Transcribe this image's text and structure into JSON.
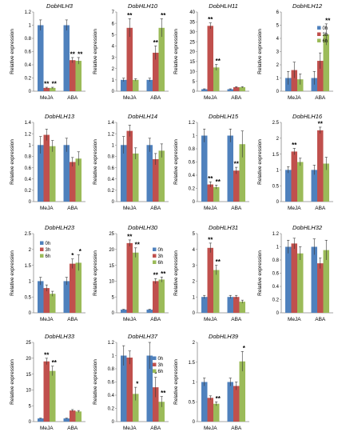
{
  "colors": {
    "0h": "#4F81BD",
    "3h": "#C0504D",
    "6h": "#9BBB59",
    "axis": "#888888",
    "text": "#000000"
  },
  "chart_data": [
    {
      "type": "bar",
      "title": "DobHLH3",
      "ylabel": "Relative expression",
      "ylim": [
        0,
        1.2
      ],
      "yticks": [
        "0",
        "0.2",
        "0.4",
        "0.6",
        "0.8",
        "1",
        "1.2"
      ],
      "categories": [
        "MeJA",
        "ABA"
      ],
      "series": [
        {
          "name": "0h",
          "values": [
            1,
            1
          ],
          "err": [
            0.08,
            0.08
          ]
        },
        {
          "name": "3h",
          "values": [
            0.05,
            0.47
          ],
          "err": [
            0.01,
            0.04
          ]
        },
        {
          "name": "6h",
          "values": [
            0.05,
            0.46
          ],
          "err": [
            0.01,
            0.05
          ]
        }
      ],
      "annotations": [
        [
          "",
          "**",
          "**"
        ],
        [
          "",
          "**",
          "**"
        ]
      ]
    },
    {
      "type": "bar",
      "title": "DobHLH10",
      "ylabel": "Relative expression",
      "ylim": [
        0,
        7
      ],
      "yticks": [
        "0",
        "1",
        "2",
        "3",
        "4",
        "5",
        "6",
        "7"
      ],
      "categories": [
        "MeJA",
        "ABA"
      ],
      "series": [
        {
          "name": "0h",
          "values": [
            1,
            1
          ],
          "err": [
            0.15,
            0.15
          ]
        },
        {
          "name": "3h",
          "values": [
            5.6,
            3.4
          ],
          "err": [
            0.8,
            0.6
          ]
        },
        {
          "name": "6h",
          "values": [
            1,
            5.6
          ],
          "err": [
            0.1,
            0.8
          ]
        }
      ],
      "annotations": [
        [
          "",
          "**",
          ""
        ],
        [
          "",
          "**",
          "**"
        ]
      ]
    },
    {
      "type": "bar",
      "title": "DobHLH11",
      "ylabel": "Relative expression",
      "ylim": [
        0,
        40
      ],
      "yticks": [
        "0",
        "5",
        "10",
        "15",
        "20",
        "25",
        "30",
        "35",
        "40"
      ],
      "categories": [
        "MeJA",
        "ABA"
      ],
      "series": [
        {
          "name": "0h",
          "values": [
            1,
            1
          ],
          "err": [
            0.2,
            0.2
          ]
        },
        {
          "name": "3h",
          "values": [
            33,
            2
          ],
          "err": [
            1.5,
            0.3
          ]
        },
        {
          "name": "6h",
          "values": [
            12,
            2
          ],
          "err": [
            1.5,
            0.3
          ]
        }
      ],
      "annotations": [
        [
          "",
          "**",
          "**"
        ],
        [
          "",
          "",
          ""
        ]
      ]
    },
    {
      "type": "bar",
      "title": "DobHLH12",
      "ylabel": "Relative expression",
      "ylim": [
        0,
        6
      ],
      "yticks": [
        "0",
        "1",
        "2",
        "3",
        "4",
        "5",
        "6"
      ],
      "categories": [
        "MeJA",
        "ABA"
      ],
      "series": [
        {
          "name": "0h",
          "values": [
            1,
            1
          ],
          "err": [
            0.5,
            0.5
          ]
        },
        {
          "name": "3h",
          "values": [
            1.6,
            2.3
          ],
          "err": [
            0.6,
            0.6
          ]
        },
        {
          "name": "6h",
          "values": [
            0.9,
            4.3
          ],
          "err": [
            0.4,
            0.8
          ]
        }
      ],
      "annotations": [
        [
          "",
          "",
          ""
        ],
        [
          "",
          "",
          "**"
        ]
      ],
      "legend": [
        "0h",
        "3h",
        "6h"
      ],
      "legend_position": "right"
    },
    {
      "type": "bar",
      "title": "DobHLH13",
      "ylabel": "Relative expression",
      "ylim": [
        0,
        1.4
      ],
      "yticks": [
        "0",
        "0.2",
        "0.4",
        "0.6",
        "0.8",
        "1",
        "1.2",
        "1.4"
      ],
      "categories": [
        "MeJA",
        "ABA"
      ],
      "series": [
        {
          "name": "0h",
          "values": [
            1,
            1
          ],
          "err": [
            0.15,
            0.12
          ]
        },
        {
          "name": "3h",
          "values": [
            1.18,
            0.7
          ],
          "err": [
            0.1,
            0.08
          ]
        },
        {
          "name": "6h",
          "values": [
            0.98,
            0.76
          ],
          "err": [
            0.1,
            0.12
          ]
        }
      ],
      "annotations": [
        [
          "",
          "",
          ""
        ],
        [
          "",
          "",
          ""
        ]
      ]
    },
    {
      "type": "bar",
      "title": "DobHLH14",
      "ylabel": "Relative expression",
      "ylim": [
        0,
        1.4
      ],
      "yticks": [
        "0",
        "0.2",
        "0.4",
        "0.6",
        "0.8",
        "1",
        "1.2",
        "1.4"
      ],
      "categories": [
        "MeJA",
        "ABA"
      ],
      "series": [
        {
          "name": "0h",
          "values": [
            1,
            1
          ],
          "err": [
            0.15,
            0.12
          ]
        },
        {
          "name": "3h",
          "values": [
            1.25,
            0.75
          ],
          "err": [
            0.1,
            0.1
          ]
        },
        {
          "name": "6h",
          "values": [
            0.85,
            0.9
          ],
          "err": [
            0.1,
            0.12
          ]
        }
      ],
      "annotations": [
        [
          "",
          "",
          ""
        ],
        [
          "",
          "",
          ""
        ]
      ]
    },
    {
      "type": "bar",
      "title": "DobHLH15",
      "ylabel": "Relative expression",
      "ylim": [
        0,
        1.2
      ],
      "yticks": [
        "0",
        "0.2",
        "0.4",
        "0.6",
        "0.8",
        "1",
        "1.2"
      ],
      "categories": [
        "MeJA",
        "ABA"
      ],
      "series": [
        {
          "name": "0h",
          "values": [
            1,
            1
          ],
          "err": [
            0.1,
            0.1
          ]
        },
        {
          "name": "3h",
          "values": [
            0.26,
            0.47
          ],
          "err": [
            0.04,
            0.05
          ]
        },
        {
          "name": "6h",
          "values": [
            0.22,
            0.87
          ],
          "err": [
            0.03,
            0.2
          ]
        }
      ],
      "annotations": [
        [
          "",
          "**",
          "**"
        ],
        [
          "",
          "**",
          ""
        ]
      ]
    },
    {
      "type": "bar",
      "title": "DobHLH16",
      "ylabel": "Relative expression",
      "ylim": [
        0,
        2.5
      ],
      "yticks": [
        "0",
        "0.5",
        "1",
        "1.5",
        "2",
        "2.5"
      ],
      "categories": [
        "MeJA",
        "ABA"
      ],
      "series": [
        {
          "name": "0h",
          "values": [
            1,
            1
          ],
          "err": [
            0.1,
            0.15
          ]
        },
        {
          "name": "3h",
          "values": [
            1.58,
            2.25
          ],
          "err": [
            0.1,
            0.1
          ]
        },
        {
          "name": "6h",
          "values": [
            1.25,
            1.2
          ],
          "err": [
            0.12,
            0.2
          ]
        }
      ],
      "annotations": [
        [
          "",
          "**",
          ""
        ],
        [
          "",
          "**",
          ""
        ]
      ]
    },
    {
      "type": "bar",
      "title": "DobHLH23",
      "ylabel": "Relative expression",
      "ylim": [
        0,
        2.5
      ],
      "yticks": [
        "0",
        "0.5",
        "1",
        "1.5",
        "2",
        "2.5"
      ],
      "categories": [
        "MeJA",
        "ABA"
      ],
      "series": [
        {
          "name": "0h",
          "values": [
            1,
            1
          ],
          "err": [
            0.12,
            0.12
          ]
        },
        {
          "name": "3h",
          "values": [
            0.78,
            1.55
          ],
          "err": [
            0.1,
            0.15
          ]
        },
        {
          "name": "6h",
          "values": [
            0.6,
            1.58
          ],
          "err": [
            0.08,
            0.25
          ]
        }
      ],
      "annotations": [
        [
          "",
          "",
          ""
        ],
        [
          "",
          "*",
          "*"
        ]
      ],
      "legend": [
        "0h",
        "3h",
        "6h"
      ],
      "legend_position": "left"
    },
    {
      "type": "bar",
      "title": "DobHLH30",
      "ylabel": "Relative expression",
      "ylim": [
        0,
        25
      ],
      "yticks": [
        "0",
        "5",
        "10",
        "15",
        "20",
        "25"
      ],
      "categories": [
        "MeJA",
        "ABA"
      ],
      "series": [
        {
          "name": "0h",
          "values": [
            1,
            1
          ],
          "err": [
            0.1,
            0.1
          ]
        },
        {
          "name": "3h",
          "values": [
            22,
            10
          ],
          "err": [
            1,
            0.8
          ]
        },
        {
          "name": "6h",
          "values": [
            19,
            10.5
          ],
          "err": [
            1.5,
            0.8
          ]
        }
      ],
      "annotations": [
        [
          "",
          "**",
          "**"
        ],
        [
          "",
          "**",
          "**"
        ]
      ],
      "legend": [
        "0h",
        "3h",
        "6h"
      ],
      "legend_position": "right"
    },
    {
      "type": "bar",
      "title": "DobHLH31",
      "ylabel": "Relative expression",
      "ylim": [
        0,
        5
      ],
      "yticks": [
        "0",
        "1",
        "2",
        "3",
        "4",
        "5"
      ],
      "categories": [
        "MeJA",
        "ABA"
      ],
      "series": [
        {
          "name": "0h",
          "values": [
            1,
            1
          ],
          "err": [
            0.1,
            0.1
          ]
        },
        {
          "name": "3h",
          "values": [
            4.1,
            1
          ],
          "err": [
            0.3,
            0.1
          ]
        },
        {
          "name": "6h",
          "values": [
            2.7,
            0.7
          ],
          "err": [
            0.3,
            0.1
          ]
        }
      ],
      "annotations": [
        [
          "",
          "**",
          "**"
        ],
        [
          "",
          "",
          ""
        ]
      ]
    },
    {
      "type": "bar",
      "title": "DobHLH32",
      "ylabel": "Relative expression",
      "ylim": [
        0,
        1.2
      ],
      "yticks": [
        "0",
        "0.2",
        "0.4",
        "0.6",
        "0.8",
        "1",
        "1.2"
      ],
      "categories": [
        "MeJA",
        "ABA"
      ],
      "series": [
        {
          "name": "0h",
          "values": [
            1,
            1
          ],
          "err": [
            0.1,
            0.12
          ]
        },
        {
          "name": "3h",
          "values": [
            1.05,
            0.75
          ],
          "err": [
            0.08,
            0.08
          ]
        },
        {
          "name": "6h",
          "values": [
            0.9,
            0.95
          ],
          "err": [
            0.1,
            0.15
          ]
        }
      ],
      "annotations": [
        [
          "",
          "",
          ""
        ],
        [
          "",
          "",
          ""
        ]
      ]
    },
    {
      "type": "bar",
      "title": "DobHLH33",
      "ylabel": "Relative expression",
      "ylim": [
        0,
        25
      ],
      "yticks": [
        "0",
        "5",
        "10",
        "15",
        "20",
        "25"
      ],
      "categories": [
        "MeJA",
        "ABA"
      ],
      "series": [
        {
          "name": "0h",
          "values": [
            1,
            1
          ],
          "err": [
            0.1,
            0.1
          ]
        },
        {
          "name": "3h",
          "values": [
            19,
            3.5
          ],
          "err": [
            1,
            0.3
          ]
        },
        {
          "name": "6h",
          "values": [
            16,
            3.2
          ],
          "err": [
            1.5,
            0.3
          ]
        }
      ],
      "annotations": [
        [
          "",
          "**",
          "**"
        ],
        [
          "",
          "",
          ""
        ]
      ]
    },
    {
      "type": "bar",
      "title": "DobHLH37",
      "ylabel": "Relative expression",
      "ylim": [
        0,
        1.2
      ],
      "yticks": [
        "0",
        "0.2",
        "0.4",
        "0.6",
        "0.8",
        "1",
        "1.2"
      ],
      "categories": [
        "MeJA",
        "ABA"
      ],
      "series": [
        {
          "name": "0h",
          "values": [
            1,
            1
          ],
          "err": [
            0.15,
            0.2
          ]
        },
        {
          "name": "3h",
          "values": [
            0.97,
            0.52
          ],
          "err": [
            0.1,
            0.15
          ]
        },
        {
          "name": "6h",
          "values": [
            0.42,
            0.3
          ],
          "err": [
            0.1,
            0.08
          ]
        }
      ],
      "annotations": [
        [
          "",
          "",
          "*"
        ],
        [
          "",
          "*",
          "**"
        ]
      ],
      "legend": [
        "0h",
        "3h",
        "6h"
      ],
      "legend_position": "right"
    },
    {
      "type": "bar",
      "title": "DobHLH39",
      "ylabel": "Relative expression",
      "ylim": [
        0,
        2
      ],
      "yticks": [
        "0",
        "0.5",
        "1",
        "1.5",
        "2"
      ],
      "categories": [
        "MeJA",
        "ABA"
      ],
      "series": [
        {
          "name": "0h",
          "values": [
            1,
            1
          ],
          "err": [
            0.1,
            0.1
          ]
        },
        {
          "name": "3h",
          "values": [
            0.6,
            0.9
          ],
          "err": [
            0.05,
            0.1
          ]
        },
        {
          "name": "6h",
          "values": [
            0.45,
            1.52
          ],
          "err": [
            0.05,
            0.25
          ]
        }
      ],
      "annotations": [
        [
          "",
          "",
          "**"
        ],
        [
          "",
          "",
          "*"
        ]
      ]
    }
  ]
}
